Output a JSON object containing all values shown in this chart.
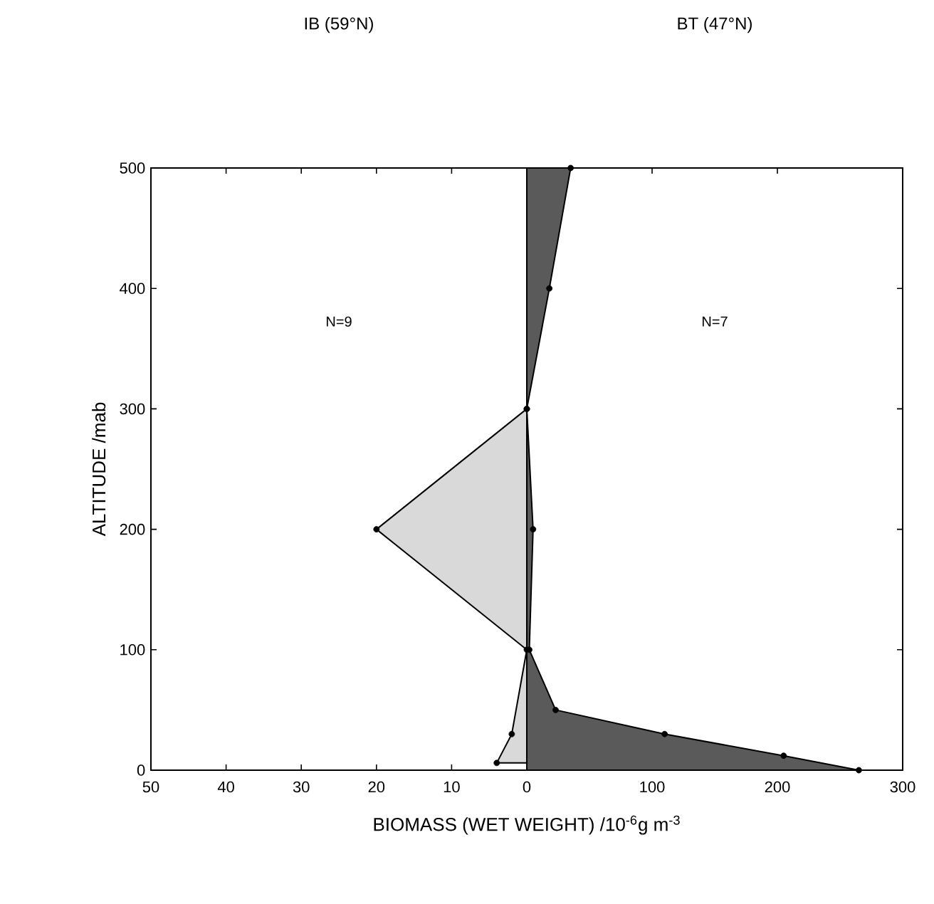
{
  "chart_data": [
    {
      "type": "area",
      "orientation": "horizontal",
      "title": "IB (59°N)",
      "xlabel": "BIOMASS (WET WEIGHT) /10$^{-6}$g m$^{-3}$",
      "ylabel": "ALTITUDE /mab",
      "x": [
        300,
        200,
        100,
        30,
        6
      ],
      "series": [
        {
          "color": "#d9d9d9",
          "values": [
            0,
            20,
            0,
            2,
            4
          ]
        }
      ],
      "xlim": [
        50,
        0
      ],
      "ylim": [
        0,
        500
      ],
      "xticks": [
        50,
        40,
        30,
        20,
        10,
        0
      ],
      "yticks": [
        0,
        100,
        200,
        300,
        400,
        500
      ],
      "marker": "circle",
      "annotations": [
        "N=9"
      ]
    },
    {
      "type": "area",
      "orientation": "horizontal",
      "title": "BT (47°N)",
      "x": [
        500,
        400,
        300,
        200,
        100,
        50,
        30,
        12,
        0
      ],
      "series": [
        {
          "color": "#5a5a5a",
          "values": [
            35,
            18,
            0,
            5,
            2,
            23,
            110,
            205,
            265
          ]
        }
      ],
      "xlim": [
        0,
        300
      ],
      "ylim": [
        0,
        500
      ],
      "xticks": [
        {
          "value": 0,
          "label": null
        },
        100,
        200,
        300
      ],
      "yticks": [
        0,
        100,
        200,
        300,
        400,
        500
      ],
      "tick_labels": "x",
      "marker": "circle",
      "annotations": [
        "N=7"
      ]
    }
  ]
}
